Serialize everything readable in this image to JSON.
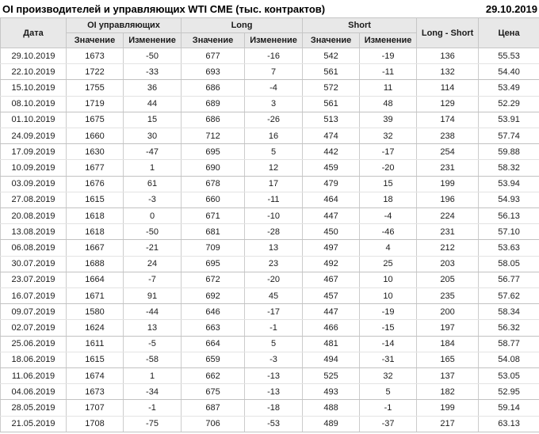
{
  "title": "OI производителей и управляющих WTI CME (тыс. контрактов)",
  "report_date": "29.10.2019",
  "header": {
    "date": "Дата",
    "oi_group": "OI управляющих",
    "long_group": "Long",
    "short_group": "Short",
    "value": "Значение",
    "change": "Изменение",
    "net": "Long - Short",
    "price": "Цена"
  },
  "colors": {
    "positive": "#009900",
    "negative": "#dd0000",
    "header_bg": "#e8e8e8",
    "border": "#c6c6c6"
  },
  "chart_data": {
    "type": "table",
    "title": "OI производителей и управляющих WTI CME (тыс. контрактов)",
    "as_of_date": "29.10.2019",
    "columns": [
      "Дата",
      "OI управляющих Значение",
      "OI управляющих Изменение",
      "Long Значение",
      "Long Изменение",
      "Short Значение",
      "Short Изменение",
      "Long - Short",
      "Цена"
    ],
    "change_column_indexes": [
      2,
      4,
      6
    ],
    "rows": [
      [
        "29.10.2019",
        1673,
        -50,
        677,
        -16,
        542,
        -19,
        136,
        "55.53"
      ],
      [
        "22.10.2019",
        1722,
        -33,
        693,
        7,
        561,
        -11,
        132,
        "54.40"
      ],
      [
        "15.10.2019",
        1755,
        36,
        686,
        -4,
        572,
        11,
        114,
        "53.49"
      ],
      [
        "08.10.2019",
        1719,
        44,
        689,
        3,
        561,
        48,
        129,
        "52.29"
      ],
      [
        "01.10.2019",
        1675,
        15,
        686,
        -26,
        513,
        39,
        174,
        "53.91"
      ],
      [
        "24.09.2019",
        1660,
        30,
        712,
        16,
        474,
        32,
        238,
        "57.74"
      ],
      [
        "17.09.2019",
        1630,
        -47,
        695,
        5,
        442,
        -17,
        254,
        "59.88"
      ],
      [
        "10.09.2019",
        1677,
        1,
        690,
        12,
        459,
        -20,
        231,
        "58.32"
      ],
      [
        "03.09.2019",
        1676,
        61,
        678,
        17,
        479,
        15,
        199,
        "53.94"
      ],
      [
        "27.08.2019",
        1615,
        -3,
        660,
        -11,
        464,
        18,
        196,
        "54.93"
      ],
      [
        "20.08.2019",
        1618,
        0,
        671,
        -10,
        447,
        -4,
        224,
        "56.13"
      ],
      [
        "13.08.2019",
        1618,
        -50,
        681,
        -28,
        450,
        -46,
        231,
        "57.10"
      ],
      [
        "06.08.2019",
        1667,
        -21,
        709,
        13,
        497,
        4,
        212,
        "53.63"
      ],
      [
        "30.07.2019",
        1688,
        24,
        695,
        23,
        492,
        25,
        203,
        "58.05"
      ],
      [
        "23.07.2019",
        1664,
        -7,
        672,
        -20,
        467,
        10,
        205,
        "56.77"
      ],
      [
        "16.07.2019",
        1671,
        91,
        692,
        45,
        457,
        10,
        235,
        "57.62"
      ],
      [
        "09.07.2019",
        1580,
        -44,
        646,
        -17,
        447,
        -19,
        200,
        "58.34"
      ],
      [
        "02.07.2019",
        1624,
        13,
        663,
        -1,
        466,
        -15,
        197,
        "56.32"
      ],
      [
        "25.06.2019",
        1611,
        -5,
        664,
        5,
        481,
        -14,
        184,
        "58.77"
      ],
      [
        "18.06.2019",
        1615,
        -58,
        659,
        -3,
        494,
        -31,
        165,
        "54.08"
      ],
      [
        "11.06.2019",
        1674,
        1,
        662,
        -13,
        525,
        32,
        137,
        "53.05"
      ],
      [
        "04.06.2019",
        1673,
        -34,
        675,
        -13,
        493,
        5,
        182,
        "52.95"
      ],
      [
        "28.05.2019",
        1707,
        -1,
        687,
        -18,
        488,
        -1,
        199,
        "59.14"
      ],
      [
        "21.05.2019",
        1708,
        -75,
        706,
        -53,
        489,
        -37,
        217,
        "63.13"
      ]
    ]
  }
}
